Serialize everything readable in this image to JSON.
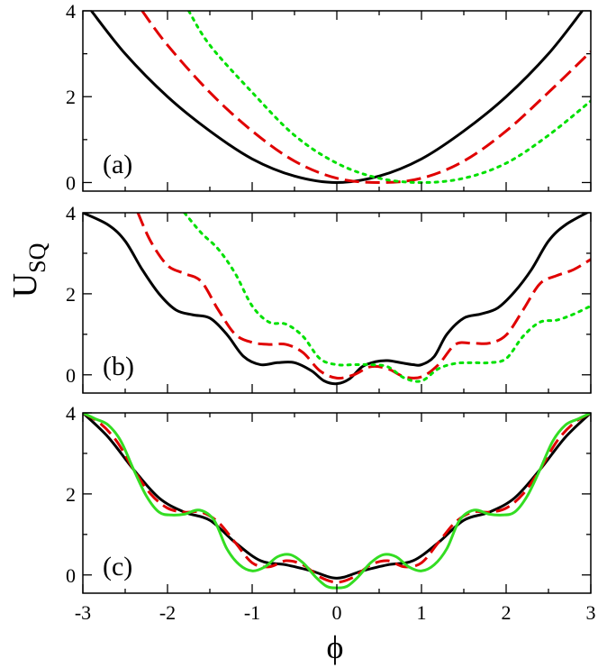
{
  "chart_data": {
    "type": "line",
    "ylabel": "U",
    "ylabel_subscript": "SQ",
    "xlabel": "ϕ",
    "xlim": [
      -3,
      3
    ],
    "x_ticks": [
      -3,
      -2,
      -1,
      0,
      1,
      2,
      3
    ],
    "x_tick_labels": [
      "-3",
      "-2",
      "-1",
      "0",
      "1",
      "2",
      "3"
    ],
    "panels": [
      {
        "label": "(a)",
        "ylim": [
          -0.2,
          4
        ],
        "y_ticks": [
          0,
          2,
          4
        ],
        "y_tick_labels": [
          "0",
          "2",
          "4"
        ],
        "series": [
          {
            "name": "black-solid",
            "color": "#000000",
            "style": "solid",
            "x": [
              -2.9,
              -2.5,
              -2.0,
              -1.5,
              -1.0,
              -0.5,
              0,
              0.5,
              1.0,
              1.5,
              2.0,
              2.5,
              2.9
            ],
            "y": [
              4.0,
              3.0,
              2.0,
              1.2,
              0.55,
              0.15,
              0.0,
              0.15,
              0.55,
              1.2,
              2.0,
              3.0,
              4.0
            ]
          },
          {
            "name": "red-dashed",
            "color": "#e00000",
            "style": "dashed",
            "x": [
              -2.3,
              -2.0,
              -1.5,
              -1.0,
              -0.5,
              0,
              0.5,
              1.0,
              1.5,
              2.0,
              2.5,
              3.0
            ],
            "y": [
              4.0,
              3.2,
              2.1,
              1.2,
              0.5,
              0.1,
              0.0,
              0.1,
              0.5,
              1.2,
              2.1,
              3.05
            ]
          },
          {
            "name": "green-dotted",
            "color": "#00e000",
            "style": "dotted",
            "x": [
              -1.75,
              -1.5,
              -1.0,
              -0.5,
              0,
              0.5,
              1.0,
              1.5,
              2.0,
              2.5,
              3.0
            ],
            "y": [
              4.0,
              3.2,
              2.1,
              1.1,
              0.45,
              0.1,
              0.0,
              0.1,
              0.45,
              1.1,
              1.9
            ]
          }
        ]
      },
      {
        "label": "(b)",
        "ylim": [
          -0.45,
          4
        ],
        "y_ticks": [
          0,
          2,
          4
        ],
        "y_tick_labels": [
          "0",
          "2",
          "4"
        ],
        "series": [
          {
            "name": "black-solid",
            "color": "#000000",
            "style": "solid",
            "x": [
              -3.0,
              -2.7,
              -2.5,
              -2.3,
              -2.1,
              -1.9,
              -1.7,
              -1.5,
              -1.3,
              -1.1,
              -0.9,
              -0.7,
              -0.5,
              -0.3,
              -0.15,
              0,
              0.15,
              0.3,
              0.45,
              0.6,
              0.75,
              0.9,
              1.0,
              1.15,
              1.3,
              1.5,
              1.7,
              1.9,
              2.1,
              2.3,
              2.5,
              2.7,
              3.0
            ],
            "y": [
              4.0,
              3.7,
              3.3,
              2.6,
              2.0,
              1.6,
              1.48,
              1.4,
              1.0,
              0.45,
              0.25,
              0.3,
              0.3,
              0.1,
              -0.15,
              -0.22,
              -0.1,
              0.2,
              0.32,
              0.35,
              0.3,
              0.25,
              0.25,
              0.45,
              1.0,
              1.4,
              1.5,
              1.65,
              2.05,
              2.6,
              3.3,
              3.7,
              4.05
            ]
          },
          {
            "name": "red-dashed",
            "color": "#e00000",
            "style": "dashed",
            "x": [
              -2.35,
              -2.2,
              -2.0,
              -1.8,
              -1.6,
              -1.4,
              -1.2,
              -1.0,
              -0.8,
              -0.6,
              -0.4,
              -0.2,
              0,
              0.2,
              0.4,
              0.6,
              0.8,
              1.0,
              1.2,
              1.4,
              1.6,
              1.8,
              2.0,
              2.2,
              2.4,
              2.6,
              2.8,
              3.0
            ],
            "y": [
              4.0,
              3.3,
              2.7,
              2.5,
              2.3,
              1.6,
              1.0,
              0.8,
              0.75,
              0.75,
              0.55,
              0.1,
              -0.08,
              0.0,
              0.2,
              0.15,
              -0.05,
              -0.05,
              0.25,
              0.75,
              0.78,
              0.78,
              0.98,
              1.6,
              2.25,
              2.45,
              2.6,
              2.85
            ]
          },
          {
            "name": "green-dotted",
            "color": "#00e000",
            "style": "dotted",
            "x": [
              -1.8,
              -1.6,
              -1.4,
              -1.2,
              -1.0,
              -0.8,
              -0.6,
              -0.4,
              -0.2,
              0,
              0.2,
              0.4,
              0.6,
              0.8,
              1.0,
              1.2,
              1.4,
              1.6,
              1.8,
              2.0,
              2.2,
              2.4,
              2.6,
              2.8,
              3.0
            ],
            "y": [
              4.0,
              3.5,
              3.1,
              2.5,
              1.7,
              1.3,
              1.25,
              0.95,
              0.4,
              0.25,
              0.25,
              0.25,
              0.2,
              -0.08,
              -0.15,
              0.15,
              0.28,
              0.3,
              0.3,
              0.4,
              0.95,
              1.3,
              1.35,
              1.5,
              1.7
            ]
          }
        ]
      },
      {
        "label": "(c)",
        "ylim": [
          -0.45,
          4
        ],
        "y_ticks": [
          0,
          2,
          4
        ],
        "y_tick_labels": [
          "0",
          "2",
          "4"
        ],
        "series": [
          {
            "name": "black-solid",
            "color": "#000000",
            "style": "solid",
            "x": [
              -3.0,
              -2.7,
              -2.4,
              -2.1,
              -1.8,
              -1.5,
              -1.2,
              -0.9,
              -0.6,
              -0.3,
              0,
              0.3,
              0.6,
              0.9,
              1.2,
              1.5,
              1.8,
              2.1,
              2.4,
              2.7,
              3.0
            ],
            "y": [
              4.0,
              3.4,
              2.6,
              1.9,
              1.55,
              1.35,
              0.8,
              0.35,
              0.25,
              0.1,
              -0.08,
              0.1,
              0.25,
              0.35,
              0.8,
              1.35,
              1.55,
              1.9,
              2.6,
              3.4,
              4.0
            ]
          },
          {
            "name": "red-dashed",
            "color": "#e00000",
            "style": "dashed",
            "x": [
              -3.0,
              -2.8,
              -2.6,
              -2.4,
              -2.2,
              -2.0,
              -1.8,
              -1.6,
              -1.4,
              -1.2,
              -1.0,
              -0.8,
              -0.6,
              -0.4,
              -0.2,
              0,
              0.2,
              0.4,
              0.6,
              0.8,
              1.0,
              1.2,
              1.4,
              1.6,
              1.8,
              2.0,
              2.2,
              2.4,
              2.6,
              2.8,
              3.0
            ],
            "y": [
              4.0,
              3.75,
              3.3,
              2.6,
              2.0,
              1.65,
              1.55,
              1.55,
              1.3,
              0.8,
              0.3,
              0.2,
              0.35,
              0.25,
              -0.05,
              -0.18,
              -0.05,
              0.25,
              0.35,
              0.2,
              0.3,
              0.8,
              1.3,
              1.55,
              1.55,
              1.65,
              2.0,
              2.6,
              3.3,
              3.75,
              4.0
            ]
          },
          {
            "name": "green-solid",
            "color": "#33dd22",
            "style": "solid",
            "x": [
              -3.0,
              -2.85,
              -2.7,
              -2.55,
              -2.4,
              -2.25,
              -2.1,
              -1.95,
              -1.8,
              -1.62,
              -1.45,
              -1.3,
              -1.15,
              -1.0,
              -0.85,
              -0.7,
              -0.55,
              -0.4,
              -0.25,
              -0.12,
              0,
              0.12,
              0.25,
              0.4,
              0.55,
              0.7,
              0.85,
              1.0,
              1.15,
              1.3,
              1.45,
              1.62,
              1.8,
              1.95,
              2.1,
              2.25,
              2.4,
              2.55,
              2.7,
              2.85,
              3.0
            ],
            "y": [
              4.0,
              3.85,
              3.7,
              3.3,
              2.6,
              1.95,
              1.55,
              1.48,
              1.5,
              1.6,
              1.35,
              0.65,
              0.25,
              0.1,
              0.2,
              0.45,
              0.5,
              0.3,
              -0.05,
              -0.28,
              -0.32,
              -0.28,
              -0.05,
              0.3,
              0.5,
              0.45,
              0.2,
              0.1,
              0.25,
              0.65,
              1.35,
              1.6,
              1.5,
              1.48,
              1.55,
              1.95,
              2.6,
              3.3,
              3.7,
              3.85,
              4.0
            ]
          }
        ]
      }
    ]
  }
}
